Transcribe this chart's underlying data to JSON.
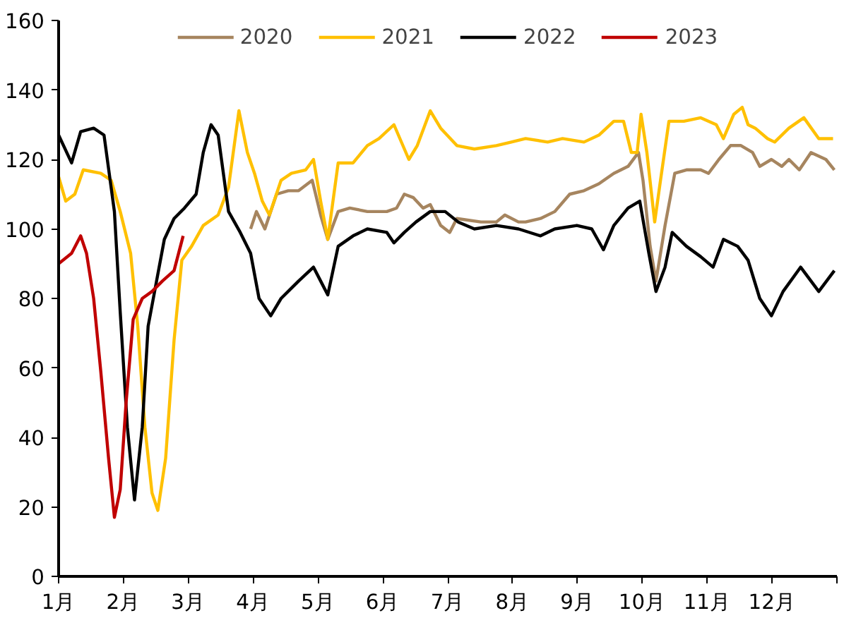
{
  "chart_data": {
    "type": "line",
    "xlim": [
      1,
      13
    ],
    "ylim": [
      0,
      160
    ],
    "xticks": [
      {
        "value": 1,
        "label": "1月"
      },
      {
        "value": 2,
        "label": "2月"
      },
      {
        "value": 3,
        "label": "3月"
      },
      {
        "value": 4,
        "label": "4月"
      },
      {
        "value": 5,
        "label": "5月"
      },
      {
        "value": 6,
        "label": "6月"
      },
      {
        "value": 7,
        "label": "7月"
      },
      {
        "value": 8,
        "label": "8月"
      },
      {
        "value": 9,
        "label": "9月"
      },
      {
        "value": 10,
        "label": "10月"
      },
      {
        "value": 11,
        "label": "11月"
      },
      {
        "value": 12,
        "label": "12月"
      },
      {
        "value": 13,
        "label": null
      }
    ],
    "yticks": [
      0,
      20,
      40,
      60,
      80,
      100,
      120,
      140,
      160
    ],
    "grid": false,
    "legend": "top",
    "marker": "none",
    "line_style": "solid",
    "series": [
      {
        "name": "2020",
        "color": "#a6855f",
        "x": [
          3.96,
          4.05,
          4.18,
          4.36,
          4.54,
          4.7,
          4.91,
          5.04,
          5.15,
          5.31,
          5.49,
          5.76,
          6.06,
          6.21,
          6.33,
          6.47,
          6.62,
          6.73,
          6.89,
          7.03,
          7.14,
          7.51,
          7.75,
          7.88,
          8.09,
          8.2,
          8.43,
          8.65,
          8.88,
          9.1,
          9.33,
          9.56,
          9.78,
          9.94,
          10.01,
          10.12,
          10.21,
          10.35,
          10.5,
          10.68,
          10.9,
          11.02,
          11.18,
          11.36,
          11.52,
          11.7,
          11.81,
          11.99,
          12.15,
          12.26,
          12.42,
          12.6,
          12.83,
          12.96
        ],
        "values": [
          100,
          105,
          100,
          110,
          111,
          111,
          114,
          104,
          97,
          105,
          106,
          105,
          105,
          106,
          110,
          109,
          106,
          107,
          101,
          99,
          103,
          102,
          102,
          104,
          102,
          102,
          103,
          105,
          110,
          111,
          113,
          116,
          118,
          122,
          114,
          95,
          85,
          101,
          116,
          117,
          117,
          116,
          120,
          124,
          124,
          122,
          118,
          120,
          118,
          120,
          117,
          122,
          120,
          117
        ]
      },
      {
        "name": "2021",
        "color": "#ffc000",
        "x": [
          1.0,
          1.11,
          1.25,
          1.38,
          1.65,
          1.81,
          1.95,
          2.11,
          2.22,
          2.33,
          2.44,
          2.53,
          2.65,
          2.78,
          2.9,
          3.05,
          3.23,
          3.46,
          3.62,
          3.78,
          3.91,
          4.02,
          4.14,
          4.25,
          4.43,
          4.59,
          4.81,
          4.93,
          5.04,
          5.15,
          5.31,
          5.54,
          5.76,
          5.94,
          6.17,
          6.4,
          6.53,
          6.73,
          6.89,
          7.14,
          7.41,
          7.75,
          7.98,
          8.2,
          8.54,
          8.77,
          9.1,
          9.33,
          9.56,
          9.71,
          9.83,
          9.92,
          9.98,
          10.07,
          10.19,
          10.28,
          10.41,
          10.64,
          10.9,
          11.14,
          11.25,
          11.41,
          11.54,
          11.63,
          11.74,
          11.93,
          12.04,
          12.26,
          12.49,
          12.72,
          12.94
        ],
        "values": [
          115,
          108,
          110,
          117,
          116,
          114,
          105,
          93,
          72,
          43,
          24,
          19,
          34,
          68,
          91,
          95,
          101,
          104,
          112,
          134,
          122,
          116,
          108,
          104,
          114,
          116,
          117,
          120,
          108,
          97,
          119,
          119,
          124,
          126,
          130,
          120,
          124,
          134,
          129,
          124,
          123,
          124,
          125,
          126,
          125,
          126,
          125,
          127,
          131,
          131,
          122,
          122,
          133,
          122,
          102,
          114,
          131,
          131,
          132,
          130,
          126,
          133,
          135,
          130,
          129,
          126,
          125,
          129,
          132,
          126,
          126
        ]
      },
      {
        "name": "2022",
        "color": "#000000",
        "x": [
          1.0,
          1.2,
          1.34,
          1.54,
          1.7,
          1.86,
          1.95,
          2.06,
          2.17,
          2.29,
          2.38,
          2.51,
          2.63,
          2.78,
          2.94,
          3.12,
          3.23,
          3.35,
          3.46,
          3.62,
          3.8,
          3.96,
          4.09,
          4.27,
          4.43,
          4.7,
          4.93,
          5.04,
          5.15,
          5.31,
          5.54,
          5.76,
          6.06,
          6.17,
          6.33,
          6.51,
          6.73,
          6.96,
          7.16,
          7.41,
          7.75,
          8.09,
          8.43,
          8.65,
          8.99,
          9.22,
          9.4,
          9.56,
          9.78,
          9.96,
          10.1,
          10.21,
          10.35,
          10.46,
          10.68,
          10.9,
          11.09,
          11.25,
          11.47,
          11.63,
          11.81,
          11.99,
          12.17,
          12.44,
          12.72,
          12.96
        ],
        "values": [
          127,
          119,
          128,
          129,
          127,
          105,
          76,
          43,
          22,
          43,
          72,
          85,
          97,
          103,
          106,
          110,
          122,
          130,
          127,
          105,
          99,
          93,
          80,
          75,
          80,
          85,
          89,
          85,
          81,
          95,
          98,
          100,
          99,
          96,
          99,
          102,
          105,
          105,
          102,
          100,
          101,
          100,
          98,
          100,
          101,
          100,
          94,
          101,
          106,
          108,
          93,
          82,
          89,
          99,
          95,
          92,
          89,
          97,
          95,
          91,
          80,
          75,
          82,
          89,
          82,
          88
        ]
      },
      {
        "name": "2023",
        "color": "#c00000",
        "x": [
          1.0,
          1.2,
          1.34,
          1.43,
          1.54,
          1.65,
          1.77,
          1.86,
          1.95,
          2.04,
          2.15,
          2.29,
          2.44,
          2.6,
          2.78,
          2.92
        ],
        "values": [
          90,
          93,
          98,
          93,
          80,
          59,
          34,
          17,
          25,
          50,
          74,
          80,
          82,
          85,
          88,
          98
        ]
      }
    ]
  }
}
